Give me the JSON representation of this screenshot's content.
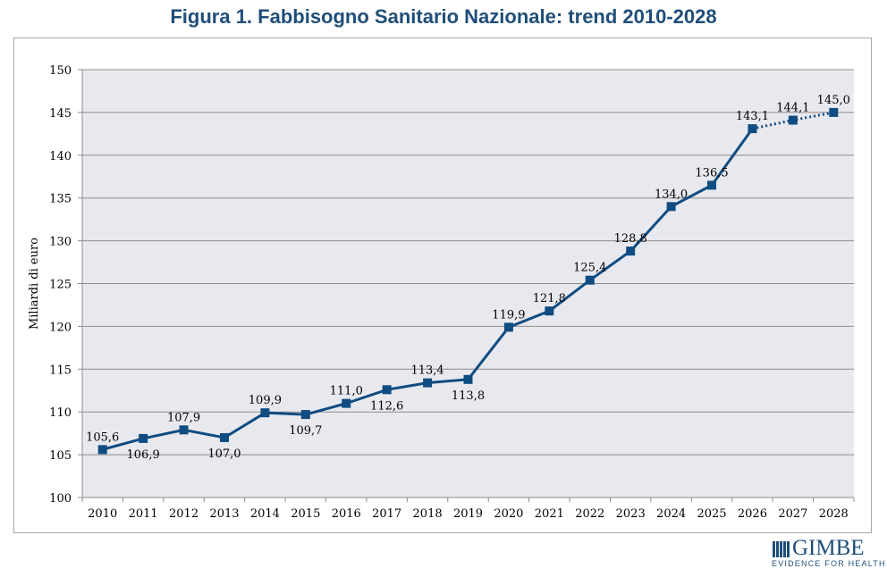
{
  "chart_data": {
    "type": "line",
    "title": "Figura 1. Fabbisogno Sanitario Nazionale: trend 2010-2028",
    "xlabel": "",
    "ylabel": "Miliardi di euro",
    "categories": [
      "2010",
      "2011",
      "2012",
      "2013",
      "2014",
      "2015",
      "2016",
      "2017",
      "2018",
      "2019",
      "2020",
      "2021",
      "2022",
      "2023",
      "2024",
      "2025",
      "2026",
      "2027",
      "2028"
    ],
    "values": [
      105.6,
      106.9,
      107.9,
      107.0,
      109.9,
      109.7,
      111.0,
      112.6,
      113.4,
      113.8,
      119.9,
      121.8,
      125.4,
      128.8,
      134.0,
      136.5,
      143.1,
      144.1,
      145.0
    ],
    "data_labels": [
      "105,6",
      "106,9",
      "107,9",
      "107,0",
      "109,9",
      "109,7",
      "111,0",
      "112,6",
      "113,4",
      "113,8",
      "119,9",
      "121,8",
      "125,4",
      "128,8",
      "134,0",
      "136,5",
      "143,1",
      "144,1",
      "145,0"
    ],
    "projected_from": "2026",
    "ylim": [
      100,
      150
    ],
    "yticks": [
      "100",
      "105",
      "110",
      "115",
      "120",
      "125",
      "130",
      "135",
      "140",
      "145",
      "150"
    ],
    "grid": true,
    "colors": {
      "line": "#0f4c81",
      "plot_bg": "#e8e9ee",
      "grid": "#8c8c8c",
      "title": "#1f4e79"
    }
  },
  "logo": {
    "name": "GIMBE",
    "tagline": "EVIDENCE FOR HEALTH"
  }
}
